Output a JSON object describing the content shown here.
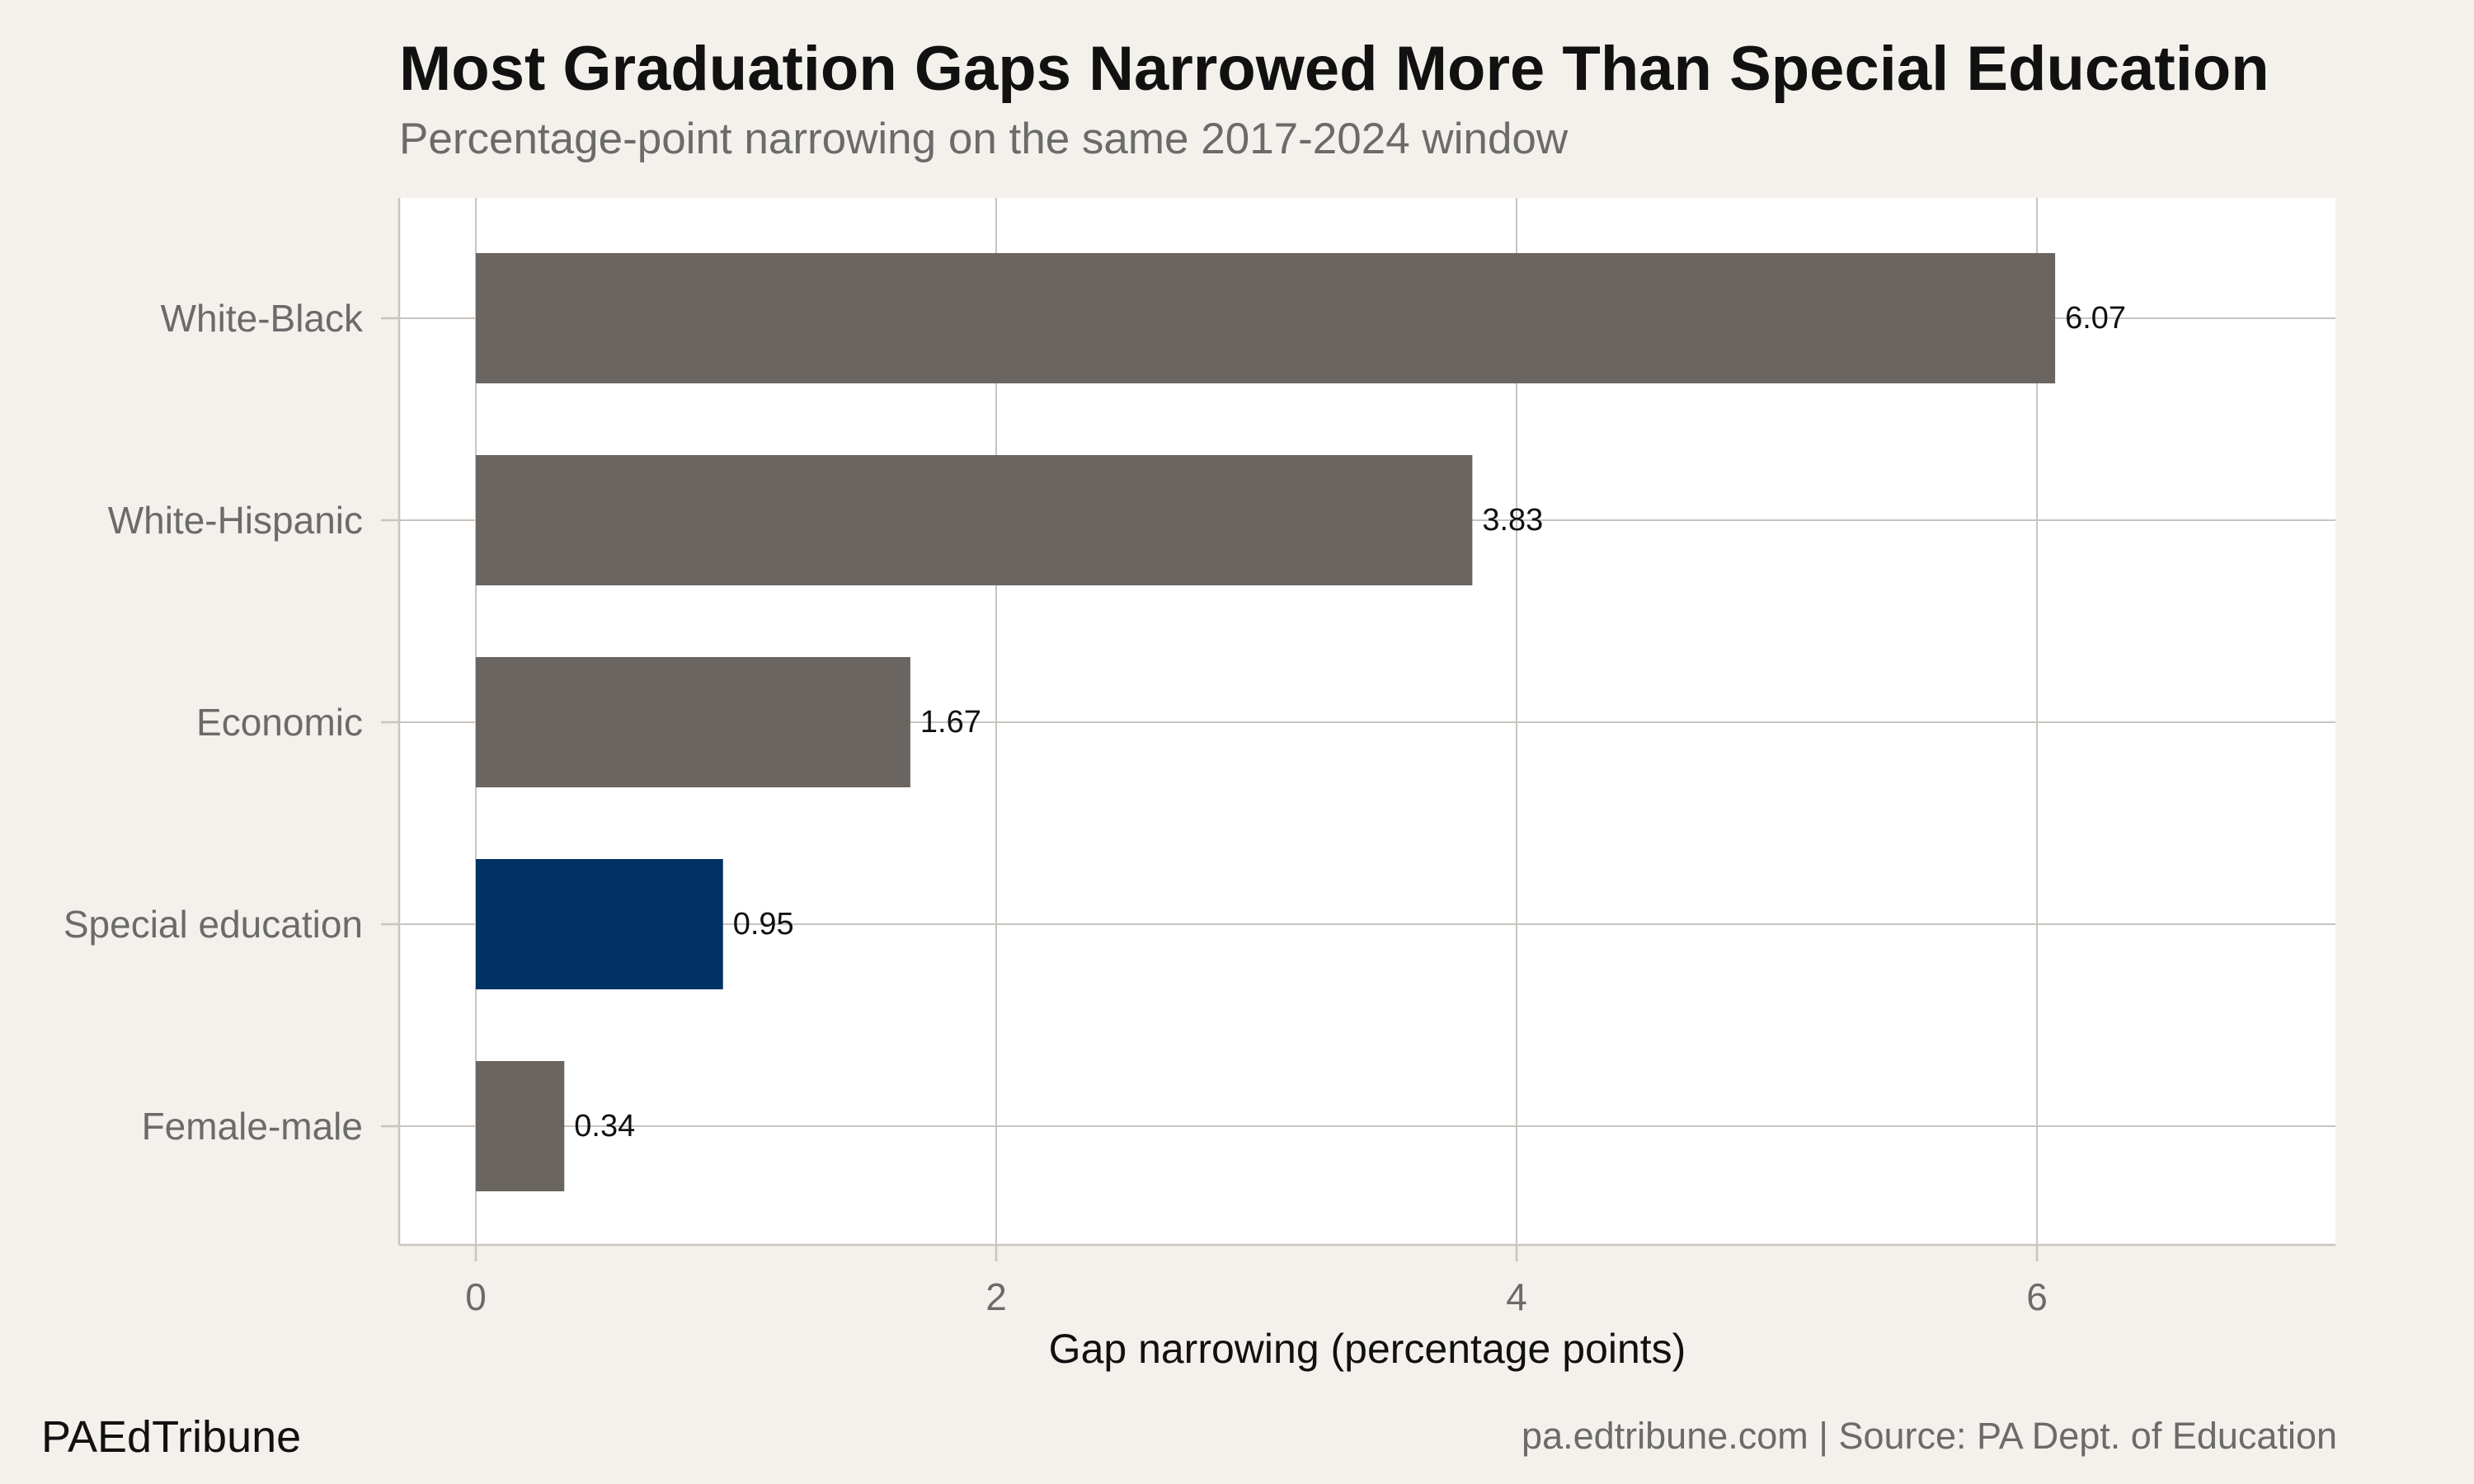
{
  "chart_data": {
    "type": "bar",
    "orientation": "horizontal",
    "title": "Most Graduation Gaps Narrowed More Than Special Education",
    "subtitle": "Percentage-point narrowing on the same 2017-2024 window",
    "xlabel": "Gap narrowing (percentage points)",
    "ylabel": "",
    "categories": [
      "White-Black",
      "White-Hispanic",
      "Economic",
      "Special education",
      "Female-male"
    ],
    "values": [
      6.07,
      3.83,
      1.67,
      0.95,
      0.34
    ],
    "value_labels": [
      "6.07",
      "3.83",
      "1.67",
      "0.95",
      "0.34"
    ],
    "highlight": "Special education",
    "xlim": [
      -0.3,
      7.15
    ],
    "xticks": [
      0,
      2,
      4,
      6
    ],
    "xtick_labels": [
      "0",
      "2",
      "4",
      "6"
    ],
    "grid": true,
    "legend": "none",
    "colors": {
      "bar": "#6a6560",
      "highlight": "#003263",
      "panel": "#ffffff",
      "background": "#f4f1ec",
      "grid": "#c8c5c0"
    }
  },
  "footer": {
    "brand": "PAEdTribune",
    "source": "pa.edtribune.com | Source: PA Dept. of Education"
  }
}
